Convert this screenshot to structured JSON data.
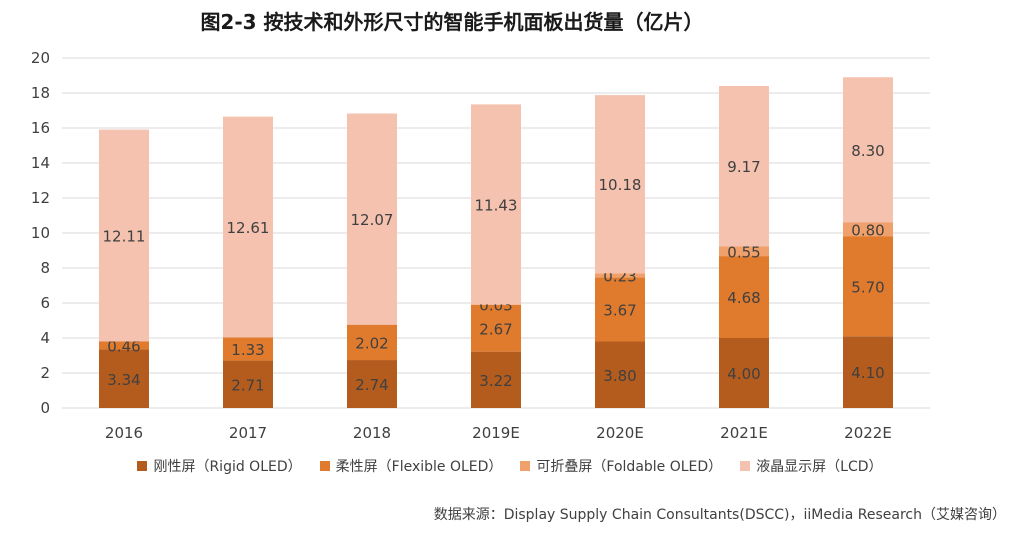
{
  "title": "图2-3 按技术和外形尺寸的智能手机面板出货量（亿片）",
  "source": "数据来源：Display Supply Chain Consultants(DSCC)，iiMedia Research（艾媒咨询）",
  "colors": {
    "rigid": "#b35c1e",
    "flexible": "#e07b2e",
    "foldable": "#f0a06a",
    "lcd": "#f5c2b0",
    "grid": "#d9d9d9"
  },
  "chart_data": {
    "type": "bar",
    "stacked": true,
    "categories": [
      "2016",
      "2017",
      "2018",
      "2019E",
      "2020E",
      "2021E",
      "2022E"
    ],
    "ylim": [
      0,
      20
    ],
    "yticks": [
      0,
      2,
      4,
      6,
      8,
      10,
      12,
      14,
      16,
      18,
      20
    ],
    "grid": true,
    "legend_position": "bottom",
    "series": [
      {
        "name": "刚性屏（Rigid OLED）",
        "color_key": "rigid",
        "values": [
          3.34,
          2.71,
          2.74,
          3.22,
          3.8,
          4.0,
          4.1
        ]
      },
      {
        "name": "柔性屏（Flexible OLED）",
        "color_key": "flexible",
        "values": [
          0.46,
          1.33,
          2.02,
          2.67,
          3.67,
          4.68,
          5.7
        ]
      },
      {
        "name": "可折叠屏（Foldable OLED）",
        "color_key": "foldable",
        "values": [
          0.0,
          0.0,
          0.0,
          0.03,
          0.23,
          0.55,
          0.8
        ]
      },
      {
        "name": "液晶显示屏（LCD）",
        "color_key": "lcd",
        "values": [
          12.11,
          12.61,
          12.07,
          11.43,
          10.18,
          9.17,
          8.3
        ]
      }
    ],
    "labels": [
      [
        "3.34",
        "0.46",
        null,
        "12.11"
      ],
      [
        "2.71",
        "1.33",
        null,
        "12.61"
      ],
      [
        "2.74",
        "2.02",
        null,
        "12.07"
      ],
      [
        "3.22",
        "2.67",
        "0.03",
        "11.43"
      ],
      [
        "3.80",
        "3.67",
        "0.23",
        "10.18"
      ],
      [
        "4.00",
        "4.68",
        "0.55",
        "9.17"
      ],
      [
        "4.10",
        "5.70",
        "0.80",
        "8.30"
      ]
    ]
  }
}
